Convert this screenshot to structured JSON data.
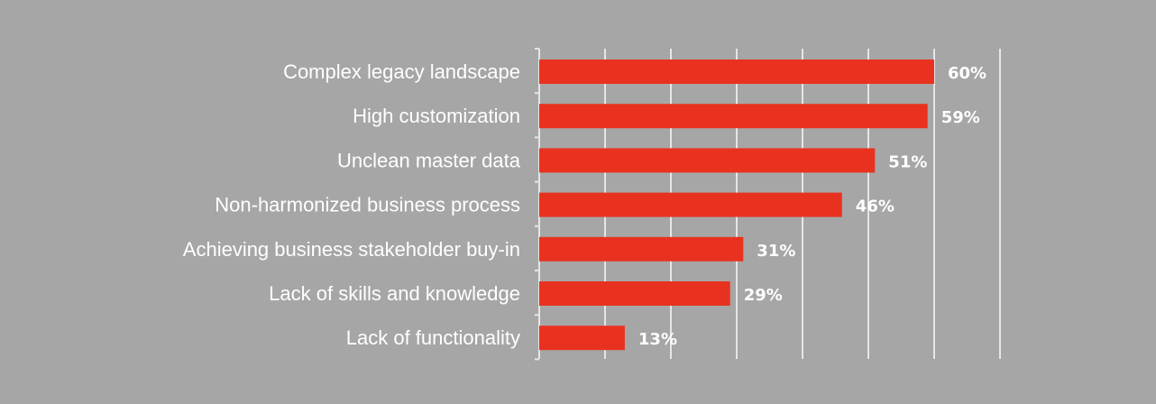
{
  "chart_data": {
    "type": "bar",
    "orientation": "horizontal",
    "categories": [
      "Complex legacy landscape",
      "High customization",
      "Unclean master data",
      "Non-harmonized business process",
      "Achieving business stakeholder buy-in",
      "Lack of skills and knowledge",
      "Lack of functionality"
    ],
    "values": [
      60,
      59,
      51,
      46,
      31,
      29,
      13
    ],
    "value_labels": [
      "60%",
      "59%",
      "51%",
      "46%",
      "31%",
      "29%",
      "13%"
    ],
    "title": "",
    "xlabel": "",
    "ylabel": "",
    "xlim": [
      0,
      70
    ],
    "grid": true,
    "legend": "none",
    "bar_color": "#e8321f",
    "background_color": "#a6a6a6",
    "gridline_color": "#e6e6e6",
    "text_color": "#ffffff"
  }
}
